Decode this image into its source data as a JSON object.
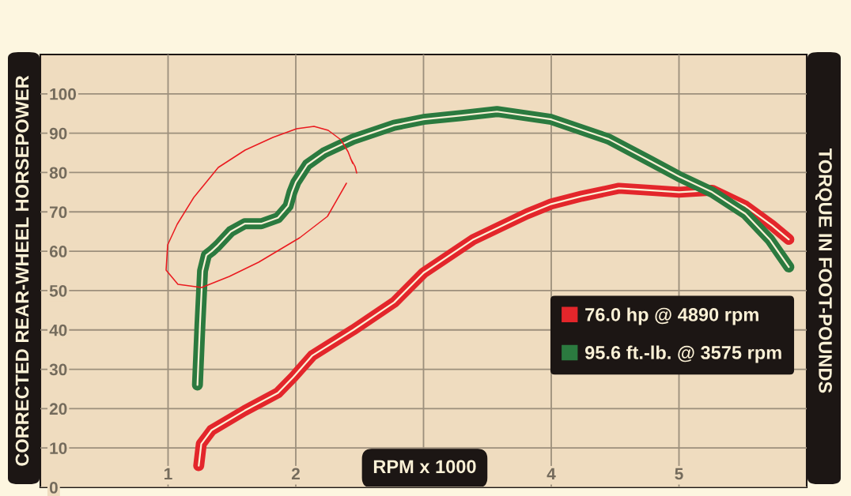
{
  "chart_data": {
    "type": "line",
    "xlabel": "RPM x 1000",
    "ylabel": "CORRECTED REAR-WHEEL HORSEPOWER",
    "y2label": "TORQUE IN FOOT-POUNDS",
    "xlim": [
      0,
      6
    ],
    "ylim": [
      0,
      110
    ],
    "xticks": [
      1,
      2,
      {
        "value": 3,
        "label": null
      },
      4,
      5
    ],
    "yticks": [
      0,
      10,
      20,
      30,
      40,
      50,
      60,
      70,
      80,
      90,
      100
    ],
    "grid": true,
    "legend": "bottom right",
    "line_style": "solid",
    "series": [
      {
        "name": "76.0 hp @ 4890 rpm",
        "color": "#e3262b",
        "x": [
          1.24,
          1.26,
          1.34,
          1.6,
          1.86,
          1.98,
          2.13,
          2.45,
          2.77,
          3.0,
          3.39,
          3.81,
          4.0,
          4.24,
          4.53,
          4.77,
          5.0,
          5.26,
          5.52,
          5.73,
          5.86
        ],
        "values": [
          5.5,
          11,
          14.5,
          19.5,
          24,
          28,
          33.5,
          40,
          47,
          54.5,
          63,
          69.5,
          72,
          74,
          76,
          75.5,
          75,
          75.5,
          71.5,
          66.5,
          63
        ]
      },
      {
        "name": "95.6 ft.-lb. @ 3575 rpm",
        "color": "#2b7a3f",
        "x": [
          1.23,
          1.25,
          1.27,
          1.3,
          1.34,
          1.39,
          1.49,
          1.6,
          1.73,
          1.86,
          1.94,
          1.97,
          2.0,
          2.09,
          2.22,
          2.45,
          2.77,
          3.0,
          3.3,
          3.575,
          4.0,
          4.45,
          4.77,
          5.0,
          5.26,
          5.52,
          5.71,
          5.86
        ],
        "values": [
          26,
          41.5,
          55,
          59,
          60,
          61.5,
          65,
          67,
          67,
          68.5,
          71.5,
          75,
          77.5,
          82,
          85,
          88.5,
          92,
          93.5,
          94.5,
          95.5,
          93.5,
          88.5,
          83,
          79,
          75,
          69.5,
          63,
          56
        ]
      }
    ]
  }
}
